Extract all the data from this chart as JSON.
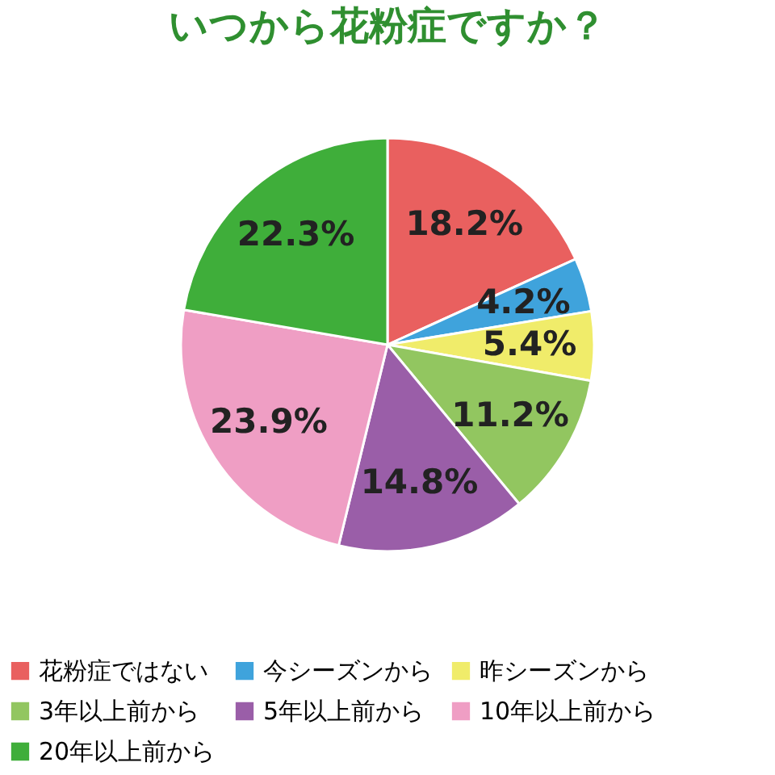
{
  "chart_data": {
    "type": "pie",
    "title": "いつから花粉症ですか？",
    "categories": [
      "花粉症ではない",
      "今シーズンから",
      "昨シーズンから",
      "3年以上前から",
      "5年以上前から",
      "10年以上前から",
      "20年以上前から"
    ],
    "values": [
      18.2,
      4.2,
      5.4,
      11.2,
      14.8,
      23.9,
      22.3
    ],
    "colors": [
      "#e9605f",
      "#3fa3dc",
      "#f0ec6a",
      "#92c660",
      "#9a5ea8",
      "#ef9ec4",
      "#3fae3a"
    ],
    "value_labels": [
      "18.2%",
      "4.2%",
      "5.4%",
      "11.2%",
      "14.8%",
      "23.9%",
      "22.3%"
    ],
    "legend": "bottom"
  }
}
